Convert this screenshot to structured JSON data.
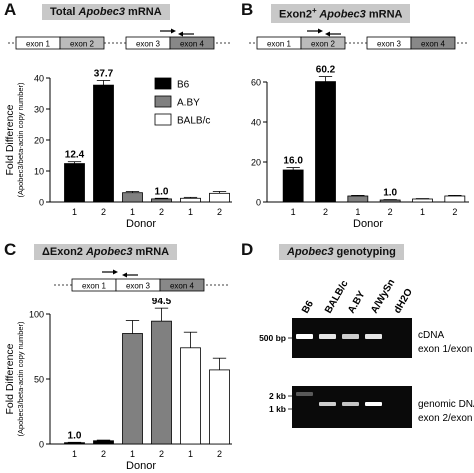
{
  "panels": {
    "A": {
      "label": "A",
      "title_pre": "Total ",
      "title_gene": "Apobec3",
      "title_post": " mRNA",
      "exons": [
        "exon 1",
        "exon 2",
        "exon 3",
        "exon 4"
      ]
    },
    "B": {
      "label": "B",
      "title_pre": "Exon2",
      "title_sup": "+",
      "title_gene": " Apobec3",
      "title_post": " mRNA",
      "exons": [
        "exon 1",
        "exon 2",
        "exon 3",
        "exon 4"
      ]
    },
    "C": {
      "label": "C",
      "title_pre": "ΔExon2 ",
      "title_gene": "Apobec3",
      "title_post": " mRNA",
      "exons": [
        "exon 1",
        "exon 3",
        "exon 4"
      ]
    },
    "D": {
      "label": "D",
      "title_gene": "Apobec3",
      "title_post": " genotyping",
      "lanes": [
        "B6",
        "BALB/c",
        "A.BY",
        "A/WySn",
        "dH2O"
      ],
      "gel1": {
        "marker": "500 bp",
        "desc1": "cDNA",
        "desc2": "exon 1/exon 4",
        "bands": [
          1.0,
          0.85,
          0.7,
          0.85,
          0
        ]
      },
      "gel2": {
        "marker1": "2 kb",
        "marker2": "1 kb",
        "desc1": "genomic DNA",
        "desc2": "exon 2/exon 3",
        "bands": [
          0.15,
          0.75,
          0.7,
          1.0,
          0
        ]
      }
    }
  },
  "legend": [
    {
      "name": "B6",
      "color": "#000000"
    },
    {
      "name": "A.BY",
      "color": "#808080"
    },
    {
      "name": "BALB/c",
      "color": "#ffffff"
    }
  ],
  "chart_data": [
    {
      "type": "bar",
      "panel": "A",
      "ylabel": "Fold Difference",
      "ylabel2": "(Apobec3/beta-actin copy number)",
      "xlabel": "Donor",
      "categories": [
        "1",
        "2",
        "1",
        "2",
        "1",
        "2"
      ],
      "groups": [
        "B6",
        "B6",
        "A.BY",
        "A.BY",
        "BALB/c",
        "BALB/c"
      ],
      "values": [
        12.4,
        37.7,
        3.0,
        1.0,
        1.2,
        2.8
      ],
      "errors": [
        0.6,
        1.5,
        0.4,
        0.2,
        0.3,
        0.6
      ],
      "data_labels": [
        "12.4",
        "37.7",
        "",
        "1.0",
        "",
        ""
      ],
      "ylim": [
        0,
        40
      ],
      "yticks": [
        0,
        10,
        20,
        30,
        40
      ]
    },
    {
      "type": "bar",
      "panel": "B",
      "ylabel": "",
      "xlabel": "Donor",
      "categories": [
        "1",
        "2",
        "1",
        "2",
        "1",
        "2"
      ],
      "groups": [
        "B6",
        "B6",
        "A.BY",
        "A.BY",
        "BALB/c",
        "BALB/c"
      ],
      "values": [
        16.0,
        60.2,
        3.0,
        1.0,
        1.5,
        3.0
      ],
      "errors": [
        1.2,
        2.5,
        0.3,
        0.2,
        0.2,
        0.3
      ],
      "data_labels": [
        "16.0",
        "60.2",
        "",
        "1.0",
        "",
        ""
      ],
      "ylim": [
        0,
        60
      ],
      "yticks": [
        0,
        20,
        40,
        60
      ]
    },
    {
      "type": "bar",
      "panel": "C",
      "ylabel": "Fold Difference",
      "ylabel2": "(Apobec3/beta-actin copy number)",
      "xlabel": "Donor",
      "categories": [
        "1",
        "2",
        "1",
        "2",
        "1",
        "2"
      ],
      "groups": [
        "B6",
        "B6",
        "A.BY",
        "A.BY",
        "BALB/c",
        "BALB/c"
      ],
      "values": [
        1.0,
        2.5,
        85,
        94.5,
        74,
        57
      ],
      "errors": [
        0.3,
        0.5,
        10,
        10,
        12,
        9
      ],
      "data_labels": [
        "1.0",
        "",
        "",
        "94.5",
        "",
        ""
      ],
      "ylim": [
        0,
        100
      ],
      "yticks": [
        0,
        50,
        100
      ]
    }
  ]
}
